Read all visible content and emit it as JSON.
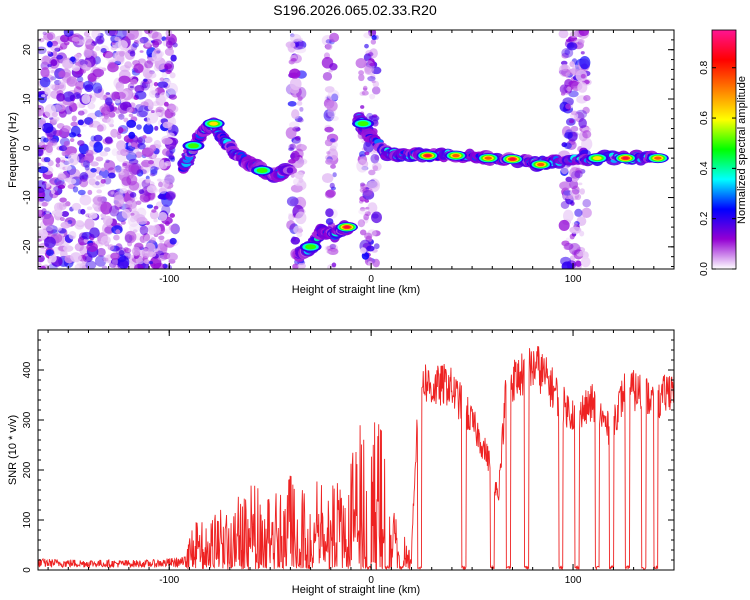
{
  "title": "S196.2026.065.02.33.R20",
  "chart_data": [
    {
      "type": "heatmap",
      "panel": "spectrogram",
      "xlabel": "Height of straight line (km)",
      "ylabel": "Frequency (Hz)",
      "xlim": [
        -165,
        150
      ],
      "ylim": [
        -24.5,
        24
      ],
      "xticks": [
        -100,
        0,
        100
      ],
      "xtick_labels": [
        "-100",
        "0",
        "100"
      ],
      "yticks": [
        -20,
        -10,
        0,
        10,
        20
      ],
      "ytick_labels": [
        "-20",
        "-10",
        "0",
        "10",
        "20"
      ],
      "colorbar": {
        "label": "Normalized spectral amplitude",
        "range": [
          0,
          0.95
        ],
        "ticks": [
          0,
          0.2,
          0.4,
          0.6,
          0.8
        ],
        "tick_labels": [
          "0.0",
          "0.2",
          "0.4",
          "0.6",
          "0.8"
        ],
        "colors": [
          "#ffffff",
          "#9400d3",
          "#0000ff",
          "#00ffff",
          "#00ff00",
          "#ffff00",
          "#ff7f00",
          "#ff0000",
          "#ff1493"
        ]
      },
      "signal_track": [
        {
          "x": -93,
          "y": -4
        },
        {
          "x": -88,
          "y": 0.5
        },
        {
          "x": -82,
          "y": 4
        },
        {
          "x": -78,
          "y": 5
        },
        {
          "x": -72,
          "y": 1
        },
        {
          "x": -66,
          "y": -1.5
        },
        {
          "x": -60,
          "y": -3
        },
        {
          "x": -54,
          "y": -4.5
        },
        {
          "x": -48,
          "y": -5.5
        },
        {
          "x": -42,
          "y": -4.5
        },
        {
          "x": -36,
          "y": -21.5
        },
        {
          "x": -30,
          "y": -20
        },
        {
          "x": -25,
          "y": -17
        },
        {
          "x": -18,
          "y": -17.5
        },
        {
          "x": -12,
          "y": -16
        },
        {
          "x": -6,
          "y": 6
        },
        {
          "x": -2,
          "y": 3
        },
        {
          "x": 8,
          "y": -1
        },
        {
          "x": 16,
          "y": -1.2
        },
        {
          "x": 28,
          "y": -1.5
        },
        {
          "x": 42,
          "y": -1.5
        },
        {
          "x": 58,
          "y": -2
        },
        {
          "x": 70,
          "y": -2.2
        },
        {
          "x": 82,
          "y": -3.2
        },
        {
          "x": 90,
          "y": -2.5
        },
        {
          "x": 112,
          "y": -2
        },
        {
          "x": 125,
          "y": -2
        },
        {
          "x": 140,
          "y": -2
        }
      ],
      "strong_blobs": [
        {
          "x": -78,
          "y": 5,
          "amp": 0.62
        },
        {
          "x": -88,
          "y": 0.5,
          "amp": 0.55
        },
        {
          "x": -54,
          "y": -4.5,
          "amp": 0.6
        },
        {
          "x": -30,
          "y": -20,
          "amp": 0.5
        },
        {
          "x": -12,
          "y": -16,
          "amp": 0.92
        },
        {
          "x": -4,
          "y": 5,
          "amp": 0.55
        },
        {
          "x": 28,
          "y": -1.5,
          "amp": 0.9
        },
        {
          "x": 42,
          "y": -1.5,
          "amp": 0.85
        },
        {
          "x": 58,
          "y": -2,
          "amp": 0.8
        },
        {
          "x": 70,
          "y": -2.2,
          "amp": 0.9
        },
        {
          "x": 84,
          "y": -3.3,
          "amp": 0.8
        },
        {
          "x": 112,
          "y": -2,
          "amp": 0.72
        },
        {
          "x": 126,
          "y": -2,
          "amp": 0.88
        },
        {
          "x": 142,
          "y": -2,
          "amp": 0.82
        }
      ],
      "noise_bands": [
        {
          "from": -165,
          "to": -97
        },
        {
          "from": -40,
          "to": -34
        },
        {
          "from": -22,
          "to": -18
        },
        {
          "from": -5,
          "to": 3
        },
        {
          "from": 95,
          "to": 107
        }
      ]
    },
    {
      "type": "line",
      "panel": "snr",
      "xlabel": "Height of straight line (km)",
      "ylabel": "SNR (10 * v/v)",
      "xlim": [
        -165,
        150
      ],
      "ylim": [
        0,
        480
      ],
      "xticks": [
        -100,
        0,
        100
      ],
      "xtick_labels": [
        "-100",
        "0",
        "100"
      ],
      "yticks": [
        0,
        100,
        200,
        300,
        400
      ],
      "ytick_labels": [
        "0",
        "100",
        "200",
        "300",
        "400"
      ],
      "color": "#ee2222",
      "series_envelope": [
        {
          "x": -165,
          "y": 18
        },
        {
          "x": -140,
          "y": 16
        },
        {
          "x": -110,
          "y": 15
        },
        {
          "x": -92,
          "y": 22
        },
        {
          "x": -88,
          "y": 90
        },
        {
          "x": -80,
          "y": 100
        },
        {
          "x": -70,
          "y": 120
        },
        {
          "x": -60,
          "y": 160
        },
        {
          "x": -50,
          "y": 140
        },
        {
          "x": -40,
          "y": 185
        },
        {
          "x": -30,
          "y": 150
        },
        {
          "x": -20,
          "y": 210
        },
        {
          "x": -12,
          "y": 170
        },
        {
          "x": -5,
          "y": 290
        },
        {
          "x": 0,
          "y": 300
        },
        {
          "x": 8,
          "y": 230
        },
        {
          "x": 14,
          "y": 80
        },
        {
          "x": 20,
          "y": 50
        },
        {
          "x": 24,
          "y": 420
        },
        {
          "x": 30,
          "y": 390
        },
        {
          "x": 38,
          "y": 400
        },
        {
          "x": 46,
          "y": 350
        },
        {
          "x": 52,
          "y": 300
        },
        {
          "x": 58,
          "y": 240
        },
        {
          "x": 63,
          "y": 160
        },
        {
          "x": 67,
          "y": 400
        },
        {
          "x": 75,
          "y": 420
        },
        {
          "x": 82,
          "y": 440
        },
        {
          "x": 90,
          "y": 390
        },
        {
          "x": 96,
          "y": 350
        },
        {
          "x": 102,
          "y": 330
        },
        {
          "x": 110,
          "y": 360
        },
        {
          "x": 118,
          "y": 300
        },
        {
          "x": 126,
          "y": 390
        },
        {
          "x": 134,
          "y": 380
        },
        {
          "x": 142,
          "y": 360
        },
        {
          "x": 150,
          "y": 400
        }
      ],
      "dropouts_x": [
        -1,
        8,
        15,
        24,
        46,
        60,
        68,
        77,
        94,
        102,
        112,
        119,
        127,
        135,
        141
      ]
    }
  ]
}
